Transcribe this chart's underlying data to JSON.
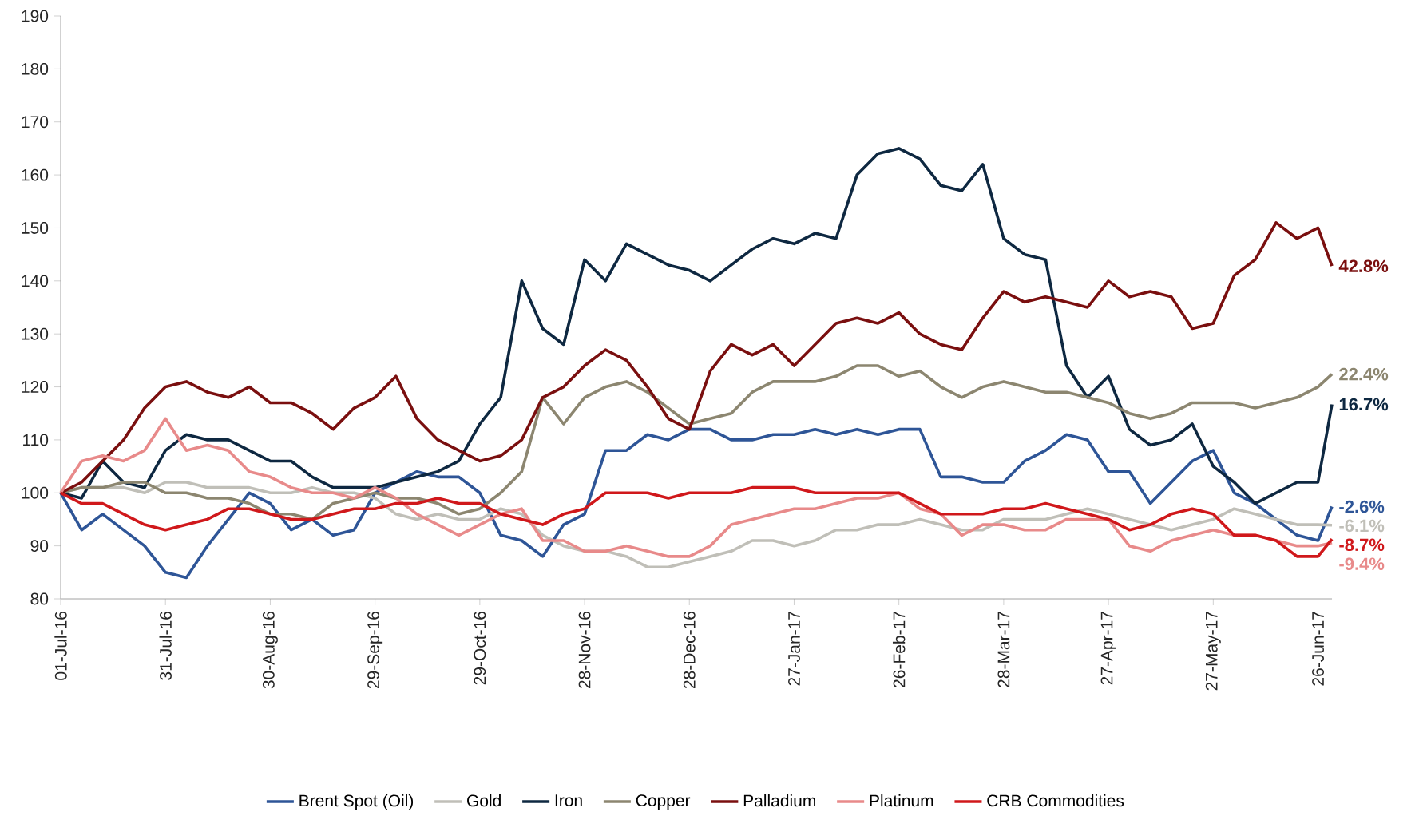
{
  "chart_data": {
    "type": "line",
    "x": [
      "2016-07-01",
      "2016-07-07",
      "2016-07-13",
      "2016-07-19",
      "2016-07-25",
      "2016-07-31",
      "2016-08-06",
      "2016-08-12",
      "2016-08-18",
      "2016-08-24",
      "2016-08-30",
      "2016-09-05",
      "2016-09-11",
      "2016-09-17",
      "2016-09-23",
      "2016-09-29",
      "2016-10-05",
      "2016-10-11",
      "2016-10-17",
      "2016-10-23",
      "2016-10-29",
      "2016-11-04",
      "2016-11-10",
      "2016-11-16",
      "2016-11-22",
      "2016-11-28",
      "2016-12-04",
      "2016-12-10",
      "2016-12-16",
      "2016-12-22",
      "2016-12-28",
      "2017-01-03",
      "2017-01-09",
      "2017-01-15",
      "2017-01-21",
      "2017-01-27",
      "2017-02-02",
      "2017-02-08",
      "2017-02-14",
      "2017-02-20",
      "2017-02-26",
      "2017-03-04",
      "2017-03-10",
      "2017-03-16",
      "2017-03-22",
      "2017-03-28",
      "2017-04-03",
      "2017-04-09",
      "2017-04-15",
      "2017-04-21",
      "2017-04-27",
      "2017-05-03",
      "2017-05-09",
      "2017-05-15",
      "2017-05-21",
      "2017-05-27",
      "2017-06-02",
      "2017-06-08",
      "2017-06-14",
      "2017-06-20",
      "2017-06-26",
      "2017-06-30"
    ],
    "series": [
      {
        "name": "Brent Spot (Oil)",
        "color": "#2e5597",
        "values": [
          100,
          93,
          96,
          93,
          90,
          85,
          84,
          90,
          95,
          100,
          98,
          93,
          95,
          92,
          93,
          100,
          102,
          104,
          103,
          103,
          100,
          92,
          91,
          88,
          94,
          96,
          108,
          108,
          111,
          110,
          112,
          112,
          110,
          110,
          111,
          111,
          112,
          111,
          112,
          111,
          112,
          112,
          103,
          103,
          102,
          102,
          106,
          108,
          111,
          110,
          104,
          104,
          98,
          102,
          106,
          108,
          100,
          98,
          95,
          92,
          91,
          97.4
        ]
      },
      {
        "name": "Gold",
        "color": "#c0bfb8",
        "values": [
          100,
          101,
          101,
          101,
          100,
          102,
          102,
          101,
          101,
          101,
          100,
          100,
          101,
          100,
          100,
          99,
          96,
          95,
          96,
          95,
          95,
          97,
          96,
          92,
          90,
          89,
          89,
          88,
          86,
          86,
          87,
          88,
          89,
          91,
          91,
          90,
          91,
          93,
          93,
          94,
          94,
          95,
          94,
          93,
          93,
          95,
          95,
          95,
          96,
          97,
          96,
          95,
          94,
          93,
          94,
          95,
          97,
          96,
          95,
          94,
          94,
          93.9
        ]
      },
      {
        "name": "Iron",
        "color": "#0e2841",
        "values": [
          100,
          99,
          106,
          102,
          101,
          108,
          111,
          110,
          110,
          108,
          106,
          106,
          103,
          101,
          101,
          101,
          102,
          103,
          104,
          106,
          113,
          118,
          140,
          131,
          128,
          144,
          140,
          147,
          145,
          143,
          142,
          140,
          143,
          146,
          148,
          147,
          149,
          148,
          160,
          164,
          165,
          163,
          158,
          157,
          162,
          148,
          145,
          144,
          124,
          118,
          122,
          112,
          109,
          110,
          113,
          105,
          102,
          98,
          100,
          102,
          102,
          116.7
        ]
      },
      {
        "name": "Copper",
        "color": "#8c8670",
        "values": [
          100,
          101,
          101,
          102,
          102,
          100,
          100,
          99,
          99,
          98,
          96,
          96,
          95,
          98,
          99,
          100,
          99,
          99,
          98,
          96,
          97,
          100,
          104,
          118,
          113,
          118,
          120,
          121,
          119,
          116,
          113,
          114,
          115,
          119,
          121,
          121,
          121,
          122,
          124,
          124,
          122,
          123,
          120,
          118,
          120,
          121,
          120,
          119,
          119,
          118,
          117,
          115,
          114,
          115,
          117,
          117,
          117,
          116,
          117,
          118,
          120,
          122.4
        ]
      },
      {
        "name": "Palladium",
        "color": "#7a0f0f",
        "values": [
          100,
          102,
          106,
          110,
          116,
          120,
          121,
          119,
          118,
          120,
          117,
          117,
          115,
          112,
          116,
          118,
          122,
          114,
          110,
          108,
          106,
          107,
          110,
          118,
          120,
          124,
          127,
          125,
          120,
          114,
          112,
          123,
          128,
          126,
          128,
          124,
          128,
          132,
          133,
          132,
          134,
          130,
          128,
          127,
          133,
          138,
          136,
          137,
          136,
          135,
          140,
          137,
          138,
          137,
          131,
          132,
          141,
          144,
          151,
          148,
          150,
          142.8
        ]
      },
      {
        "name": "Platinum",
        "color": "#e88a8a",
        "values": [
          100,
          106,
          107,
          106,
          108,
          114,
          108,
          109,
          108,
          104,
          103,
          101,
          100,
          100,
          99,
          101,
          99,
          96,
          94,
          92,
          94,
          96,
          97,
          91,
          91,
          89,
          89,
          90,
          89,
          88,
          88,
          90,
          94,
          95,
          96,
          97,
          97,
          98,
          99,
          99,
          100,
          97,
          96,
          92,
          94,
          94,
          93,
          93,
          95,
          95,
          95,
          90,
          89,
          91,
          92,
          93,
          92,
          92,
          91,
          90,
          90,
          90.6
        ]
      },
      {
        "name": "CRB Commodities",
        "color": "#d0181b",
        "values": [
          100,
          98,
          98,
          96,
          94,
          93,
          94,
          95,
          97,
          97,
          96,
          95,
          95,
          96,
          97,
          97,
          98,
          98,
          99,
          98,
          98,
          96,
          95,
          94,
          96,
          97,
          100,
          100,
          100,
          99,
          100,
          100,
          100,
          101,
          101,
          101,
          100,
          100,
          100,
          100,
          100,
          98,
          96,
          96,
          96,
          97,
          97,
          98,
          97,
          96,
          95,
          93,
          94,
          96,
          97,
          96,
          92,
          92,
          91,
          88,
          88,
          91.3
        ]
      }
    ],
    "annotations": [
      {
        "text": "42.8%",
        "x": "2017-06-30",
        "y": 142.8
      },
      {
        "text": "22.4%",
        "x": "2017-06-30",
        "y": 122.4
      },
      {
        "text": "16.7%",
        "x": "2017-06-30",
        "y": 116.7
      },
      {
        "text": "-2.6%",
        "x": "2017-06-30",
        "y": 97.4
      },
      {
        "text": "-6.1%",
        "x": "2017-06-30",
        "y": 93.9
      },
      {
        "text": "-8.7%",
        "x": "2017-06-30",
        "y": 91.3
      },
      {
        "text": "-9.4%",
        "x": "2017-06-30",
        "y": 90.6
      }
    ],
    "xlim": [
      "2016-07-01",
      "2017-06-30"
    ],
    "xticks": [
      {
        "value": "2016-07-01",
        "label": "01-Jul-16"
      },
      {
        "value": "2016-07-31",
        "label": "31-Jul-16"
      },
      {
        "value": "2016-08-30",
        "label": "30-Aug-16"
      },
      {
        "value": "2016-09-29",
        "label": "29-Sep-16"
      },
      {
        "value": "2016-10-29",
        "label": "29-Oct-16"
      },
      {
        "value": "2016-11-28",
        "label": "28-Nov-16"
      },
      {
        "value": "2016-12-28",
        "label": "28-Dec-16"
      },
      {
        "value": "2017-01-27",
        "label": "27-Jan-17"
      },
      {
        "value": "2017-02-26",
        "label": "26-Feb-17"
      },
      {
        "value": "2017-03-28",
        "label": "28-Mar-17"
      },
      {
        "value": "2017-04-27",
        "label": "27-Apr-17"
      },
      {
        "value": "2017-05-27",
        "label": "27-May-17"
      },
      {
        "value": "2017-06-26",
        "label": "26-Jun-17"
      }
    ],
    "ylim": [
      80,
      190
    ],
    "yticks": [
      80,
      90,
      100,
      110,
      120,
      130,
      140,
      150,
      160,
      170,
      180,
      190
    ],
    "grid": false,
    "legend": "bottom",
    "marker": "none",
    "line_style": "solid"
  }
}
